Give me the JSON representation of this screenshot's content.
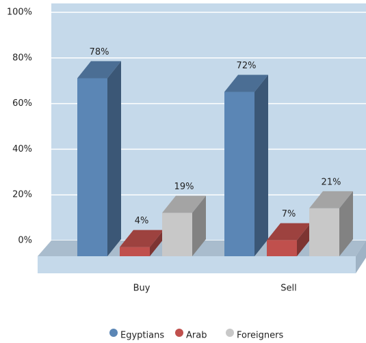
{
  "chart_data": {
    "type": "bar3d",
    "categories": [
      "Buy",
      "Sell"
    ],
    "series": [
      {
        "name": "Egyptians",
        "color": "#5b86b5",
        "values": [
          78,
          72
        ],
        "value_labels": [
          "78%",
          "72%"
        ]
      },
      {
        "name": "Arab",
        "color": "#c0504d",
        "values": [
          4,
          7
        ],
        "value_labels": [
          "4%",
          "7%"
        ]
      },
      {
        "name": "Foreigners",
        "color": "#c8c8c8",
        "values": [
          19,
          21
        ],
        "value_labels": [
          "19%",
          "21%"
        ]
      }
    ],
    "ylim": [
      0,
      100
    ],
    "yticks": [
      {
        "value": 0,
        "label": "0%"
      },
      {
        "value": 20,
        "label": "20%"
      },
      {
        "value": 40,
        "label": "40%"
      },
      {
        "value": 60,
        "label": "60%"
      },
      {
        "value": 80,
        "label": "80%"
      },
      {
        "value": 100,
        "label": "100%"
      }
    ],
    "grid": true,
    "legend": "bottom"
  }
}
